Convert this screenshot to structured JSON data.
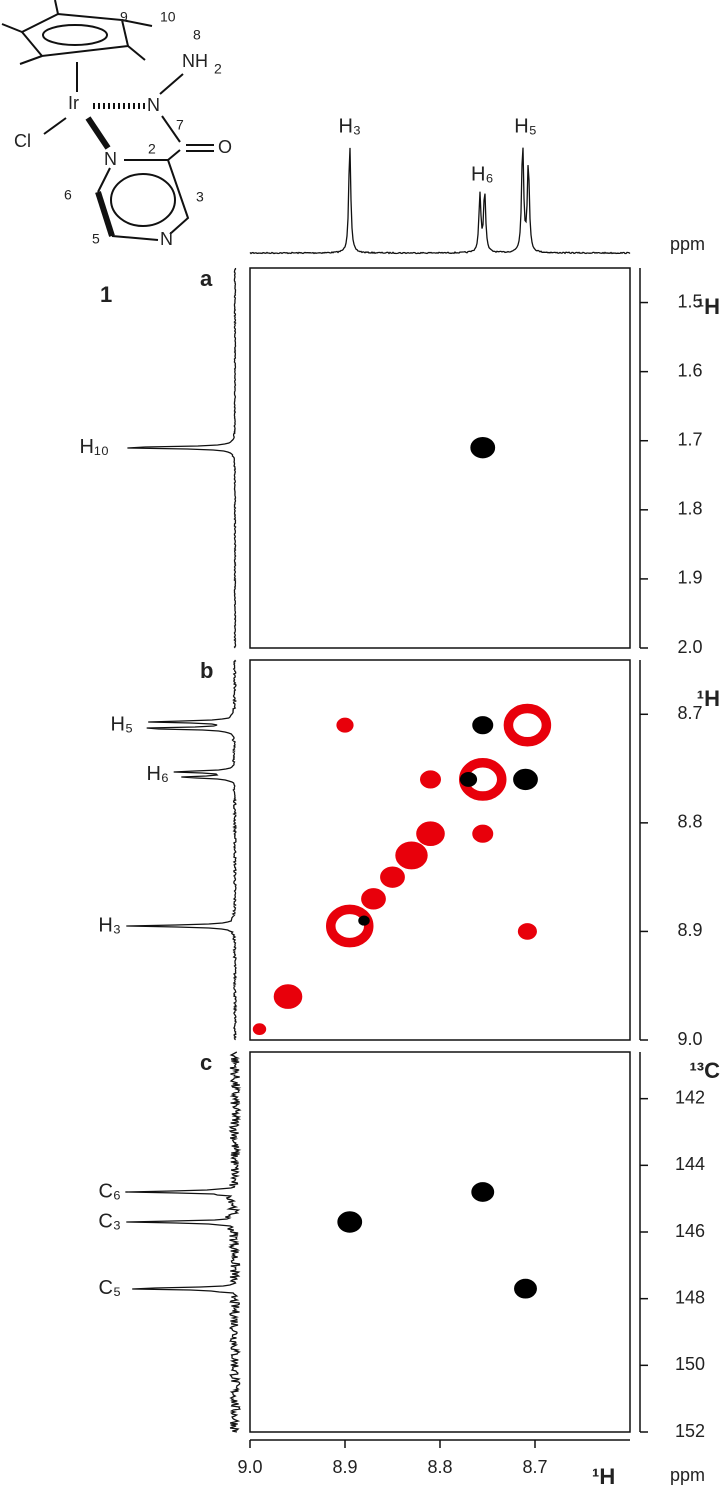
{
  "structure": {
    "labels": [
      "10",
      "9",
      "8",
      "NH",
      "2",
      "Ir",
      "N",
      "Cl",
      "7",
      "O",
      "N",
      "2",
      "6",
      "3",
      "5",
      "N"
    ],
    "compound": "1"
  },
  "x_axis": {
    "label": "¹H",
    "unit": "ppm",
    "xlim": [
      9.0,
      8.6
    ],
    "xticks": [
      {
        "value": 9.0,
        "label": "9.0"
      },
      8.9,
      8.8,
      8.7
    ]
  },
  "top_projection": {
    "unit": "ppm",
    "peaks": [
      {
        "label": "H₃",
        "positions": [
          8.895
        ],
        "intensity": [
          1.0
        ]
      },
      {
        "label": "H₆",
        "positions": [
          8.758,
          8.753
        ],
        "intensity": [
          0.52,
          0.56
        ]
      },
      {
        "label": "H₅",
        "positions": [
          8.713,
          8.707
        ],
        "intensity": [
          1.0,
          0.82
        ]
      }
    ]
  },
  "chart_data": [
    {
      "type": "contour",
      "panel": "a",
      "axis_label": "¹H",
      "ylim": [
        1.45,
        2.0
      ],
      "yticks": [
        1.5,
        1.6,
        1.7,
        1.8,
        1.9,
        {
          "value": 2.0,
          "label": "2.0"
        }
      ],
      "positive": {
        "color": "#000000",
        "x": [
          8.755
        ],
        "y": [
          1.71
        ],
        "size": [
          0.012
        ]
      },
      "negative": {
        "color": "#e8000b",
        "x": [],
        "y": [],
        "size": []
      },
      "projection": {
        "peaks": [
          {
            "label": "H₁₀",
            "positions": [
              1.71
            ],
            "intensity": [
              1.0
            ]
          }
        ]
      }
    },
    {
      "type": "contour",
      "panel": "b",
      "axis_label": "¹H",
      "ylim": [
        8.65,
        9.0
      ],
      "yticks": [
        8.7,
        8.8,
        8.9,
        {
          "value": 9.0,
          "label": "9.0"
        }
      ],
      "positive": {
        "color": "#000000",
        "x": [
          8.755,
          8.71,
          8.77,
          8.88
        ],
        "y": [
          8.71,
          8.76,
          8.76,
          8.89
        ],
        "size": [
          0.01,
          0.012,
          0.008,
          0.005
        ]
      },
      "negative": {
        "color": "#e8000b",
        "x": [
          8.895,
          8.755,
          8.708,
          8.81,
          8.83,
          8.85,
          8.87,
          8.96,
          8.99,
          8.9,
          8.81,
          8.755,
          8.708
        ],
        "y": [
          8.895,
          8.76,
          8.71,
          8.81,
          8.83,
          8.85,
          8.87,
          8.96,
          8.99,
          8.71,
          8.76,
          8.81,
          8.9
        ],
        "size": [
          0.025,
          0.025,
          0.025,
          0.014,
          0.016,
          0.012,
          0.012,
          0.014,
          0.006,
          0.008,
          0.01,
          0.01,
          0.009
        ]
      },
      "projection": {
        "peaks": [
          {
            "label": "H₅",
            "positions": [
              8.713,
              8.707
            ],
            "intensity": [
              0.8,
              0.7
            ]
          },
          {
            "label": "H₆",
            "positions": [
              8.758,
              8.753
            ],
            "intensity": [
              0.45,
              0.5
            ]
          },
          {
            "label": "H₃",
            "positions": [
              8.895
            ],
            "intensity": [
              0.9
            ]
          }
        ]
      }
    },
    {
      "type": "contour",
      "panel": "c",
      "axis_label": "¹³C",
      "ylim": [
        140.6,
        152
      ],
      "yticks": [
        142,
        144,
        146,
        148,
        150,
        152
      ],
      "positive": {
        "color": "#000000",
        "x": [
          8.895,
          8.755,
          8.71
        ],
        "y": [
          145.7,
          144.8,
          147.7
        ],
        "size": [
          0.012,
          0.011,
          0.011
        ]
      },
      "negative": {
        "color": "#e8000b",
        "x": [],
        "y": [],
        "size": []
      },
      "projection": {
        "peaks": [
          {
            "label": "C₆",
            "positions": [
              144.8
            ],
            "intensity": [
              0.9
            ]
          },
          {
            "label": "C₃",
            "positions": [
              145.7
            ],
            "intensity": [
              0.9
            ]
          },
          {
            "label": "C₅",
            "positions": [
              147.7
            ],
            "intensity": [
              0.9
            ]
          }
        ]
      }
    }
  ]
}
